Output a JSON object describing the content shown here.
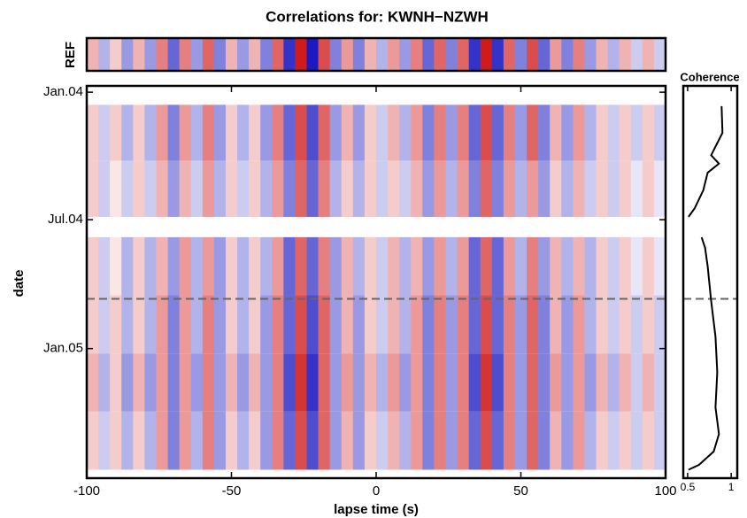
{
  "chart_data": [
    {
      "type": "heatmap",
      "title": "Correlations for: KWNH−NZWH",
      "xlabel": "lapse time (s)",
      "ylabel": "date",
      "x": [
        -98,
        -94,
        -90,
        -86,
        -82,
        -78,
        -74,
        -70,
        -66,
        -62,
        -58,
        -54,
        -50,
        -46,
        -42,
        -38,
        -34,
        -30,
        -26,
        -22,
        -18,
        -14,
        -10,
        -6,
        -2,
        2,
        6,
        10,
        14,
        18,
        22,
        26,
        30,
        34,
        38,
        42,
        46,
        50,
        54,
        58,
        62,
        66,
        70,
        74,
        78,
        82,
        86,
        90,
        94,
        98
      ],
      "ref": {
        "label": "REF",
        "values": [
          0.3,
          -0.3,
          0.2,
          -0.4,
          0.3,
          -0.4,
          0.5,
          -0.6,
          0.5,
          -0.4,
          0.6,
          -0.5,
          0.3,
          -0.4,
          0.3,
          -0.5,
          0.6,
          -0.8,
          0.9,
          -0.9,
          0.7,
          -0.5,
          0.4,
          -0.5,
          0.3,
          -0.3,
          0.4,
          -0.4,
          0.5,
          -0.6,
          0.6,
          -0.5,
          0.6,
          -0.8,
          0.9,
          -0.8,
          0.6,
          -0.5,
          0.7,
          -0.6,
          0.4,
          -0.5,
          0.5,
          -0.4,
          0.3,
          -0.3,
          0.3,
          -0.2,
          0.3,
          -0.2
        ]
      },
      "rows": [
        {
          "from": 18,
          "to": 98,
          "values": [
            0.2,
            -0.2,
            0.2,
            -0.3,
            0.2,
            -0.3,
            0.4,
            -0.5,
            0.4,
            -0.3,
            0.5,
            -0.4,
            0.2,
            -0.3,
            0.2,
            -0.4,
            0.5,
            -0.6,
            0.7,
            -0.7,
            0.6,
            -0.4,
            0.3,
            -0.4,
            0.2,
            -0.2,
            0.3,
            -0.3,
            0.4,
            -0.5,
            0.5,
            -0.4,
            0.5,
            -0.6,
            0.7,
            -0.6,
            0.5,
            -0.4,
            0.6,
            -0.5,
            0.3,
            -0.4,
            0.4,
            -0.3,
            0.2,
            -0.2,
            0.2,
            -0.2,
            0.2,
            -0.2
          ]
        },
        {
          "from": 98,
          "to": 178,
          "values": [
            0.2,
            -0.2,
            0.1,
            -0.2,
            0.2,
            -0.2,
            0.3,
            -0.4,
            0.3,
            -0.2,
            0.4,
            -0.3,
            0.2,
            -0.2,
            0.2,
            -0.3,
            0.4,
            -0.5,
            0.6,
            -0.6,
            0.5,
            -0.3,
            0.2,
            -0.3,
            0.2,
            -0.2,
            0.2,
            -0.2,
            0.3,
            -0.4,
            0.4,
            -0.3,
            0.4,
            -0.5,
            0.6,
            -0.5,
            0.4,
            -0.3,
            0.4,
            -0.4,
            0.2,
            -0.3,
            0.3,
            -0.2,
            0.2,
            -0.2,
            0.2,
            -0.1,
            0.2,
            -0.1
          ]
        },
        {
          "from": 207,
          "to": 290,
          "values": [
            0.2,
            -0.2,
            0.1,
            -0.3,
            0.2,
            -0.3,
            0.3,
            -0.4,
            0.4,
            -0.3,
            0.4,
            -0.4,
            0.2,
            -0.3,
            0.2,
            -0.3,
            0.4,
            -0.6,
            0.6,
            -0.6,
            0.5,
            -0.4,
            0.3,
            -0.3,
            0.2,
            -0.2,
            0.3,
            -0.3,
            0.3,
            -0.4,
            0.4,
            -0.3,
            0.4,
            -0.6,
            0.6,
            -0.6,
            0.4,
            -0.3,
            0.5,
            -0.4,
            0.3,
            -0.3,
            0.3,
            -0.3,
            0.2,
            -0.2,
            0.2,
            -0.1,
            0.2,
            -0.1
          ]
        },
        {
          "from": 290,
          "to": 373,
          "values": [
            0.2,
            -0.2,
            0.2,
            -0.3,
            0.2,
            -0.3,
            0.4,
            -0.5,
            0.4,
            -0.3,
            0.5,
            -0.4,
            0.2,
            -0.3,
            0.2,
            -0.4,
            0.5,
            -0.6,
            0.7,
            -0.7,
            0.6,
            -0.4,
            0.3,
            -0.4,
            0.2,
            -0.2,
            0.3,
            -0.3,
            0.4,
            -0.5,
            0.5,
            -0.4,
            0.5,
            -0.6,
            0.7,
            -0.6,
            0.5,
            -0.4,
            0.6,
            -0.5,
            0.3,
            -0.4,
            0.4,
            -0.3,
            0.2,
            -0.2,
            0.2,
            -0.2,
            0.2,
            -0.2
          ]
        },
        {
          "from": 373,
          "to": 456,
          "values": [
            0.3,
            -0.3,
            0.2,
            -0.4,
            0.3,
            -0.4,
            0.4,
            -0.5,
            0.4,
            -0.4,
            0.5,
            -0.4,
            0.3,
            -0.4,
            0.3,
            -0.4,
            0.5,
            -0.7,
            0.8,
            -0.8,
            0.6,
            -0.4,
            0.4,
            -0.4,
            0.3,
            -0.3,
            0.4,
            -0.4,
            0.4,
            -0.5,
            0.5,
            -0.4,
            0.5,
            -0.7,
            0.8,
            -0.7,
            0.5,
            -0.4,
            0.6,
            -0.5,
            0.4,
            -0.4,
            0.4,
            -0.4,
            0.3,
            -0.3,
            0.3,
            -0.2,
            0.3,
            -0.2
          ]
        },
        {
          "from": 456,
          "to": 539,
          "values": [
            0.2,
            -0.2,
            0.2,
            -0.3,
            0.2,
            -0.3,
            0.4,
            -0.5,
            0.4,
            -0.3,
            0.5,
            -0.4,
            0.2,
            -0.3,
            0.2,
            -0.4,
            0.5,
            -0.6,
            0.7,
            -0.7,
            0.6,
            -0.4,
            0.3,
            -0.4,
            0.2,
            -0.2,
            0.3,
            -0.3,
            0.4,
            -0.5,
            0.5,
            -0.4,
            0.5,
            -0.6,
            0.7,
            -0.6,
            0.5,
            -0.4,
            0.6,
            -0.5,
            0.3,
            -0.4,
            0.4,
            -0.3,
            0.2,
            -0.2,
            0.2,
            -0.2,
            0.2,
            -0.2
          ]
        }
      ],
      "clim": [
        -1,
        1
      ],
      "colors": {
        "positive": "#cc0000",
        "negative": "#0000bb"
      },
      "xlim": [
        -100,
        100
      ],
      "xticks": [
        -100,
        -50,
        0,
        50,
        100
      ],
      "ylim": [
        -9,
        551
      ],
      "yticks": [
        {
          "value": 0,
          "label": "Jan.04"
        },
        {
          "value": 182,
          "label": "Jul.04"
        },
        {
          "value": 366,
          "label": "Jan.05"
        }
      ],
      "marker_date": 295
    },
    {
      "type": "line",
      "title": "Coherence",
      "dates": [
        20,
        58,
        90,
        102,
        115,
        140,
        166,
        178,
        null,
        207,
        222,
        248,
        298,
        349,
        400,
        450,
        488,
        513,
        532,
        539
      ],
      "values": [
        0.89,
        0.9,
        0.77,
        0.86,
        0.73,
        0.68,
        0.58,
        0.51,
        null,
        0.66,
        0.7,
        0.73,
        0.77,
        0.82,
        0.84,
        0.82,
        0.86,
        0.8,
        0.63,
        0.51
      ],
      "color": "#000000",
      "xlim": [
        0.45,
        1.07
      ],
      "xticks": [
        0.5,
        1
      ]
    }
  ]
}
